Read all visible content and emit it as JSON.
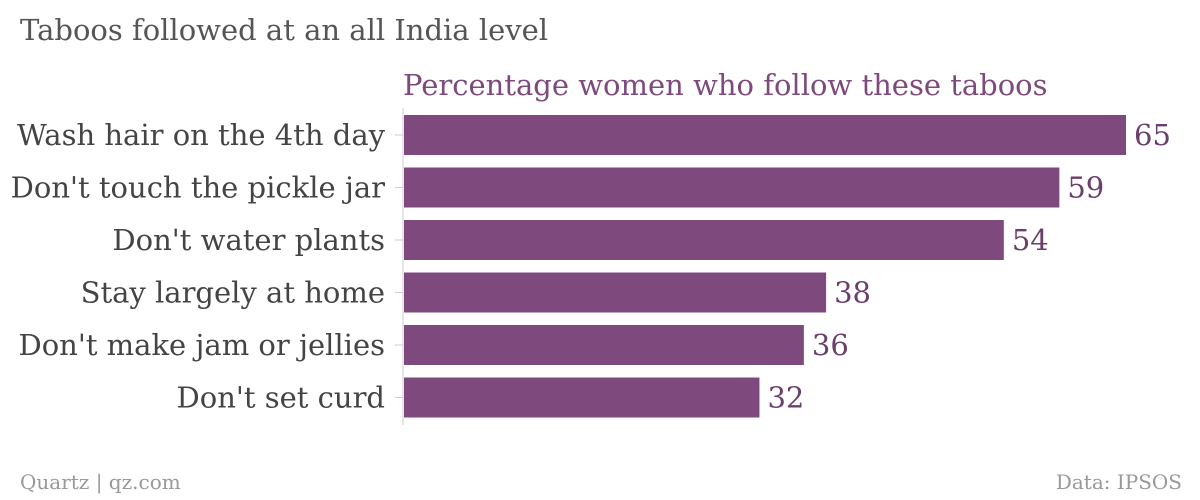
{
  "title": "Taboos followed at an all India level",
  "footer": {
    "source_left": "Quartz | qz.com",
    "source_right": "Data: IPSOS"
  },
  "colors": {
    "bar": "#7e4a7d",
    "value_label": "#6b3f6b",
    "subtitle": "#7e4a7d",
    "axis": "#cccccc"
  },
  "chart_data": {
    "type": "bar",
    "orientation": "horizontal",
    "title": "Taboos followed at an all India level",
    "subtitle": "Percentage women who follow these taboos",
    "categories": [
      "Wash hair on the 4th day",
      "Don't touch the pickle jar",
      "Don't water plants",
      "Stay largely at home",
      "Don't make jam or jellies",
      "Don't set curd"
    ],
    "values": [
      65,
      59,
      54,
      38,
      36,
      32
    ],
    "xlim": [
      0,
      65
    ],
    "grid": false,
    "legend": "none"
  }
}
